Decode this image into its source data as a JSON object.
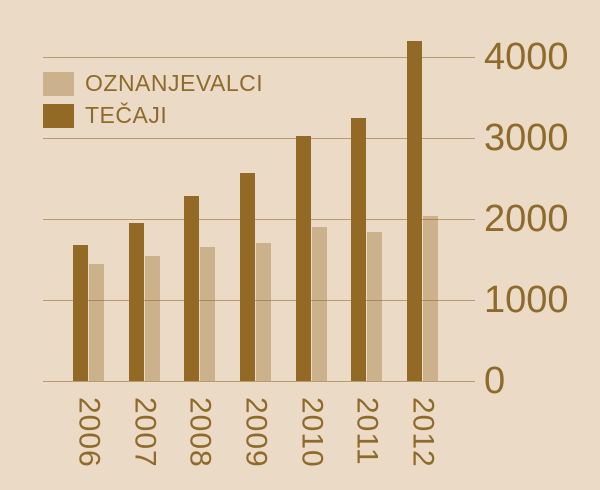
{
  "chart_data": {
    "type": "bar",
    "categories": [
      "2006",
      "2007",
      "2008",
      "2009",
      "2010",
      "2011",
      "2012"
    ],
    "series": [
      {
        "name": "OZNANJEVALCI",
        "values": [
          1440,
          1540,
          1650,
          1700,
          1900,
          1840,
          2040
        ],
        "color": "rgba(146,106,38,0.36)"
      },
      {
        "name": "TEČAJI",
        "values": [
          1680,
          1950,
          2280,
          2570,
          3030,
          3250,
          4200
        ],
        "color": "#926A26"
      }
    ],
    "title": "",
    "xlabel": "",
    "ylabel": "",
    "ylim": [
      0,
      4000
    ],
    "yticks": [
      "0",
      "1000",
      "2000",
      "3000",
      "4000"
    ],
    "ytick_values": [
      0,
      1000,
      2000,
      3000,
      4000
    ],
    "y_axis_side": "right",
    "grid": true,
    "legend_position": "top-left"
  },
  "colors": {
    "background": "#EBDAC5",
    "gridline": "rgba(143,103,38,0.55)",
    "text": "#8F6B2B",
    "bar_dark": "#926A26",
    "bar_light_effective": "#CDB18B"
  }
}
